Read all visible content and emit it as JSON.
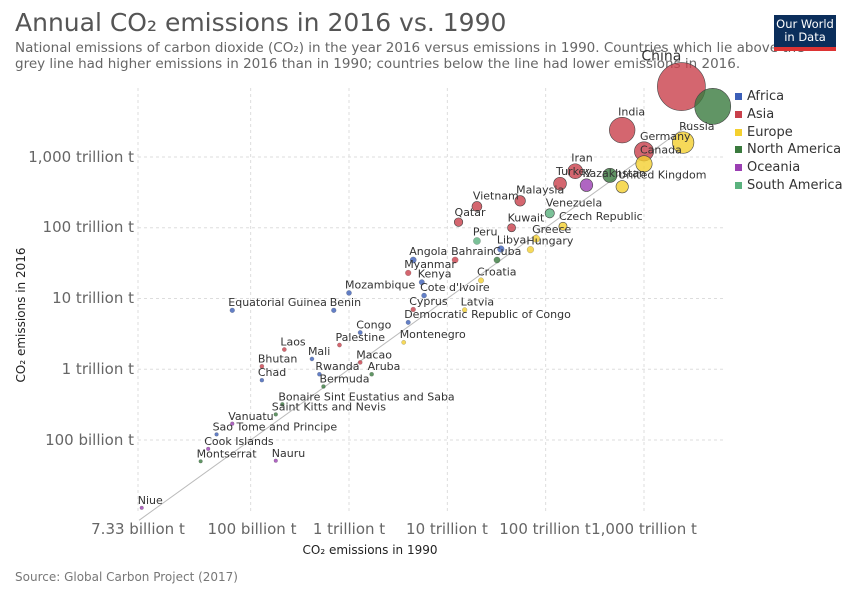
{
  "header": {
    "title": "Annual CO₂ emissions in 2016 vs. 1990",
    "subtitle": "National emissions of carbon dioxide (CO₂) in the year 2016 versus emissions in 1990. Countries which lie above the grey line had higher emissions in 2016 than in 1990; countries below the line had lower emissions in 2016."
  },
  "logo": {
    "line1": "Our World",
    "line2": "in Data"
  },
  "source": "Source: Global Carbon Project (2017)",
  "colors": {
    "Africa": "#3c5fb8",
    "Asia": "#c9404b",
    "Europe": "#f4d02f",
    "North America": "#3a7a3e",
    "Oceania": "#9b3fb3",
    "South America": "#5ab27e"
  },
  "chart_data": {
    "type": "scatter",
    "title": "Annual CO₂ emissions in 2016 vs. 1990",
    "xlabel": "CO₂ emissions in 1990",
    "ylabel": "CO₂ emissions in 2016",
    "xscale": "log",
    "yscale": "log",
    "unit": "t",
    "x_tick_labels": [
      "7.33 billion t",
      "100 billion t",
      "1 trillion t",
      "10 trillion t",
      "100 trillion t",
      "1,000 trillion t"
    ],
    "y_tick_labels": [
      "100 billion t",
      "1 trillion t",
      "10 trillion t",
      "100 trillion t",
      "1,000 trillion t"
    ],
    "grid": true,
    "reference_line": "y = x",
    "legend_position": "right",
    "legend": [
      "Africa",
      "Asia",
      "Europe",
      "North America",
      "Oceania",
      "South America"
    ],
    "points": [
      {
        "label": "China",
        "continent": "Asia",
        "x": 2400000000000000.0,
        "y": 9900000000000000.0
      },
      {
        "label": "",
        "continent": "North America",
        "x": 5000000000000000.0,
        "y": 5200000000000000.0
      },
      {
        "label": "India",
        "continent": "Asia",
        "x": 600000000000000.0,
        "y": 2400000000000000.0
      },
      {
        "label": "Russia",
        "continent": "Europe",
        "x": 2500000000000000.0,
        "y": 1600000000000000.0
      },
      {
        "label": "Germany",
        "continent": "Asia",
        "x": 1000000000000000.0,
        "y": 1200000000000000.0
      },
      {
        "label": "Canada",
        "continent": "Europe",
        "x": 1000000000000000.0,
        "y": 800000000000000.0
      },
      {
        "label": "Iran",
        "continent": "Asia",
        "x": 200000000000000.0,
        "y": 630000000000000.0
      },
      {
        "label": "",
        "continent": "North America",
        "x": 450000000000000.0,
        "y": 550000000000000.0
      },
      {
        "label": "Turkey",
        "continent": "Asia",
        "x": 140000000000000.0,
        "y": 420000000000000.0
      },
      {
        "label": "Kazakhstan",
        "continent": "Oceania",
        "x": 260000000000000.0,
        "y": 400000000000000.0
      },
      {
        "label": "United Kingdom",
        "continent": "Europe",
        "x": 600000000000000.0,
        "y": 380000000000000.0
      },
      {
        "label": "Malaysia",
        "continent": "Asia",
        "x": 55000000000000.0,
        "y": 240000000000000.0
      },
      {
        "label": "Vietnam",
        "continent": "Asia",
        "x": 20000000000000.0,
        "y": 200000000000000.0
      },
      {
        "label": "Venezuela",
        "continent": "South America",
        "x": 110000000000000.0,
        "y": 160000000000000.0
      },
      {
        "label": "Qatar",
        "continent": "Asia",
        "x": 13000000000000.0,
        "y": 120000000000000.0
      },
      {
        "label": "Kuwait",
        "continent": "Asia",
        "x": 45000000000000.0,
        "y": 100000000000000.0
      },
      {
        "label": "Czech Republic",
        "continent": "Europe",
        "x": 150000000000000.0,
        "y": 105000000000000.0
      },
      {
        "label": "Greece",
        "continent": "Europe",
        "x": 80000000000000.0,
        "y": 70000000000000.0
      },
      {
        "label": "Peru",
        "continent": "South America",
        "x": 20000000000000.0,
        "y": 65000000000000.0
      },
      {
        "label": "Libya",
        "continent": "Africa",
        "x": 35000000000000.0,
        "y": 50000000000000.0
      },
      {
        "label": "Hungary",
        "continent": "Europe",
        "x": 70000000000000.0,
        "y": 49000000000000.0
      },
      {
        "label": "Angola",
        "continent": "Africa",
        "x": 4500000000000.0,
        "y": 35000000000000.0
      },
      {
        "label": "Bahrain",
        "continent": "Asia",
        "x": 12000000000000.0,
        "y": 35000000000000.0
      },
      {
        "label": "Cuba",
        "continent": "North America",
        "x": 32000000000000.0,
        "y": 35000000000000.0
      },
      {
        "label": "Myanmar",
        "continent": "Asia",
        "x": 4000000000000.0,
        "y": 23000000000000.0
      },
      {
        "label": "Croatia",
        "continent": "Europe",
        "x": 22000000000000.0,
        "y": 18000000000000.0
      },
      {
        "label": "Kenya",
        "continent": "Africa",
        "x": 5500000000000.0,
        "y": 17000000000000.0
      },
      {
        "label": "Mozambique",
        "continent": "Africa",
        "x": 1000000000000.0,
        "y": 12000000000000.0
      },
      {
        "label": "Cote d'Ivoire",
        "continent": "Africa",
        "x": 5800000000000.0,
        "y": 11000000000000.0
      },
      {
        "label": "Equatorial Guinea",
        "continent": "Africa",
        "x": 65000000000.0,
        "y": 6800000000000.0
      },
      {
        "label": "Benin",
        "continent": "Africa",
        "x": 700000000000.0,
        "y": 6800000000000.0
      },
      {
        "label": "Cyprus",
        "continent": "Asia",
        "x": 4500000000000.0,
        "y": 7000000000000.0
      },
      {
        "label": "Latvia",
        "continent": "Europe",
        "x": 15000000000000.0,
        "y": 6900000000000.0
      },
      {
        "label": "Democratic Republic of Congo",
        "continent": "Africa",
        "x": 4000000000000.0,
        "y": 4600000000000.0
      },
      {
        "label": "Congo",
        "continent": "Africa",
        "x": 1300000000000.0,
        "y": 3300000000000.0
      },
      {
        "label": "Montenegro",
        "continent": "Europe",
        "x": 3600000000000.0,
        "y": 2400000000000.0
      },
      {
        "label": "Palestine",
        "continent": "Asia",
        "x": 800000000000.0,
        "y": 2200000000000.0
      },
      {
        "label": "Laos",
        "continent": "Asia",
        "x": 220000000000.0,
        "y": 1900000000000.0
      },
      {
        "label": "Mali",
        "continent": "Africa",
        "x": 420000000000.0,
        "y": 1400000000000.0
      },
      {
        "label": "Macao",
        "continent": "Asia",
        "x": 1300000000000.0,
        "y": 1250000000000.0
      },
      {
        "label": "Bhutan",
        "continent": "Asia",
        "x": 130000000000.0,
        "y": 1100000000000.0
      },
      {
        "label": "Rwanda",
        "continent": "Africa",
        "x": 500000000000.0,
        "y": 850000000000.0
      },
      {
        "label": "Aruba",
        "continent": "North America",
        "x": 1700000000000.0,
        "y": 850000000000.0
      },
      {
        "label": "Chad",
        "continent": "Africa",
        "x": 130000000000.0,
        "y": 700000000000.0
      },
      {
        "label": "Bermuda",
        "continent": "North America",
        "x": 550000000000.0,
        "y": 570000000000.0
      },
      {
        "label": "Bonaire Sint Eustatius and Saba",
        "continent": "North America",
        "x": 210000000000.0,
        "y": 320000000000.0
      },
      {
        "label": "Saint Kitts and Nevis",
        "continent": "North America",
        "x": 180000000000.0,
        "y": 230000000000.0
      },
      {
        "label": "Vanuatu",
        "continent": "Oceania",
        "x": 65000000000.0,
        "y": 170000000000.0
      },
      {
        "label": "Sao Tome and Principe",
        "continent": "Africa",
        "x": 45000000000.0,
        "y": 120000000000.0
      },
      {
        "label": "Cook Islands",
        "continent": "Oceania",
        "x": 37000000000.0,
        "y": 75000000000.0
      },
      {
        "label": "Montserrat",
        "continent": "North America",
        "x": 31000000000.0,
        "y": 50000000000.0
      },
      {
        "label": "Nauru",
        "continent": "Oceania",
        "x": 180000000000.0,
        "y": 51000000000.0
      },
      {
        "label": "Niue",
        "continent": "Oceania",
        "x": 7800000000.0,
        "y": 11000000000.0
      }
    ]
  }
}
